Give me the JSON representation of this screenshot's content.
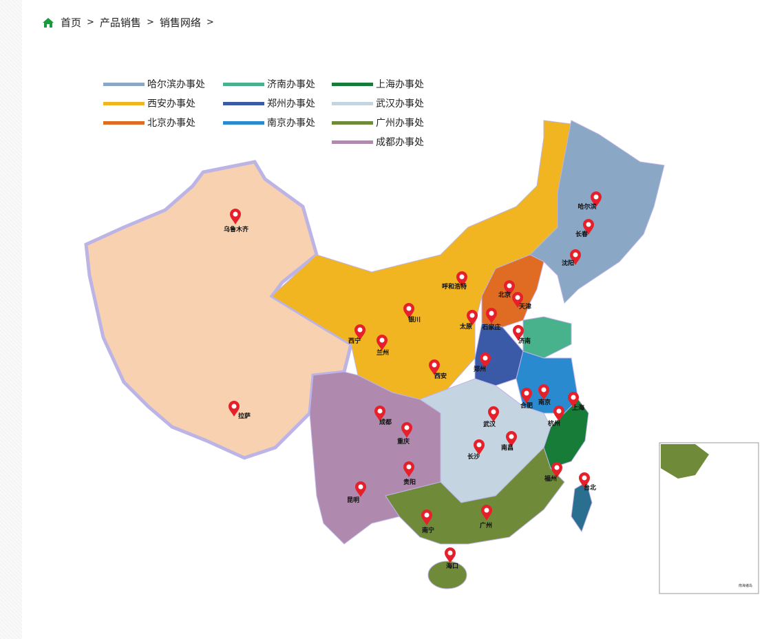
{
  "breadcrumb": {
    "items": [
      "首页",
      "产品销售",
      "销售网络"
    ],
    "separator": ">"
  },
  "legend": [
    {
      "label": "哈尔滨办事处",
      "color": "#8aa8c6"
    },
    {
      "label": "济南办事处",
      "color": "#48b28c"
    },
    {
      "label": "上海办事处",
      "color": "#177c38"
    },
    {
      "label": "西安办事处",
      "color": "#f0b521"
    },
    {
      "label": "郑州办事处",
      "color": "#3a5aa8"
    },
    {
      "label": "武汉办事处",
      "color": "#c4d4e0"
    },
    {
      "label": "北京办事处",
      "color": "#e06b22"
    },
    {
      "label": "南京办事处",
      "color": "#2a8ad0"
    },
    {
      "label": "广州办事处",
      "color": "#6f8b3a"
    },
    null,
    null,
    {
      "label": "成都办事处",
      "color": "#b08aae"
    }
  ],
  "colors": {
    "pin": "#e5202a",
    "home_icon": "#1a9a3c",
    "other_region": "#f7d1b0",
    "taiwan": "#2a6f8f"
  },
  "cities": [
    "乌鲁木齐",
    "拉萨",
    "西宁",
    "兰州",
    "银川",
    "呼和浩特",
    "太原",
    "石家庄",
    "北京",
    "天津",
    "哈尔滨",
    "长春",
    "沈阳",
    "济南",
    "郑州",
    "西安",
    "成都",
    "重庆",
    "贵阳",
    "昆明",
    "武汉",
    "长沙",
    "南昌",
    "合肥",
    "南京",
    "上海",
    "杭州",
    "福州",
    "台北",
    "南宁",
    "广州",
    "海口"
  ],
  "inset": {
    "label": "南海诸岛"
  }
}
